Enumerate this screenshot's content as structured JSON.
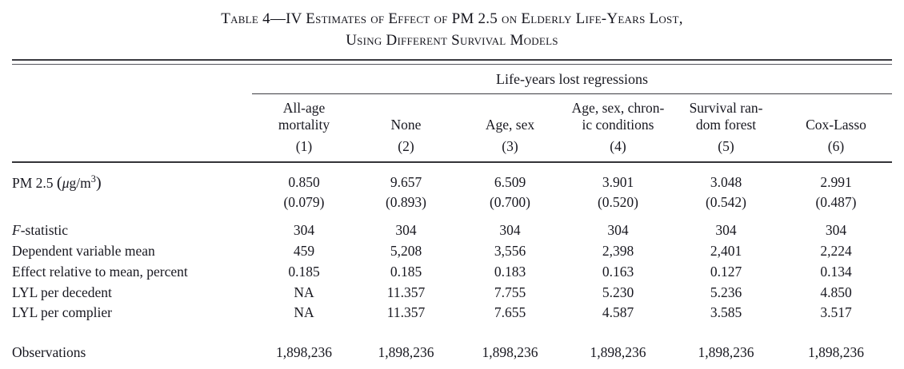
{
  "title": {
    "line1": "Table 4—IV Estimates of Effect of PM 2.5 on Elderly Life-Years Lost,",
    "line2": "Using Different Survival Models"
  },
  "table": {
    "spanner": "Life-years lost regressions",
    "columns": [
      {
        "label": "All-age\nmortality",
        "number": "(1)"
      },
      {
        "label": "None",
        "number": "(2)"
      },
      {
        "label": "Age, sex",
        "number": "(3)"
      },
      {
        "label": "Age, sex, chron-\nic conditions",
        "number": "(4)"
      },
      {
        "label": "Survival ran-\ndom forest",
        "number": "(5)"
      },
      {
        "label": "Cox-Lasso",
        "number": "(6)"
      }
    ],
    "coef_row": {
      "label_pre": "PM 2.5 ",
      "label_open": "(",
      "label_mu": "μ",
      "label_unit": "g/m",
      "label_sup": "3",
      "label_close": ")",
      "estimates": [
        "0.850",
        "9.657",
        "6.509",
        "3.901",
        "3.048",
        "2.991"
      ],
      "std_errors": [
        "(0.079)",
        "(0.893)",
        "(0.700)",
        "(0.520)",
        "(0.542)",
        "(0.487)"
      ]
    },
    "stat_rows": [
      {
        "label_italic": "F",
        "label": "-statistic",
        "values": [
          "304",
          "304",
          "304",
          "304",
          "304",
          "304"
        ]
      },
      {
        "label": "Dependent variable mean",
        "values": [
          "459",
          "5,208",
          "3,556",
          "2,398",
          "2,401",
          "2,224"
        ]
      },
      {
        "label": "Effect relative to mean, percent",
        "values": [
          "0.185",
          "0.185",
          "0.183",
          "0.163",
          "0.127",
          "0.134"
        ]
      },
      {
        "label": "LYL per decedent",
        "values": [
          "NA",
          "11.357",
          "7.755",
          "5.230",
          "5.236",
          "4.850"
        ]
      },
      {
        "label": "LYL per complier",
        "values": [
          "NA",
          "11.357",
          "7.655",
          "4.587",
          "3.585",
          "3.517"
        ]
      }
    ],
    "obs_row": {
      "label": "Observations",
      "values": [
        "1,898,236",
        "1,898,236",
        "1,898,236",
        "1,898,236",
        "1,898,236",
        "1,898,236"
      ]
    }
  }
}
